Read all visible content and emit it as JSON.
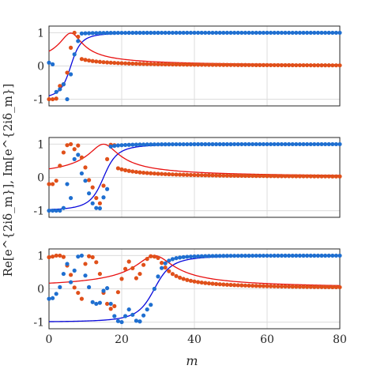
{
  "chart_data": {
    "type": "scatter",
    "xlabel": "m",
    "ylabel": "Re[e^{2iδ_m}], Im[e^{2iδ_m}]",
    "xlim": [
      0,
      80
    ],
    "ylim": [
      -1.2,
      1.2
    ],
    "x_ticks": [
      "0",
      "20",
      "40",
      "60",
      "80"
    ],
    "y_ticks": [
      "-1",
      "0",
      "1"
    ],
    "grid": true,
    "colors": {
      "blue_dots": "#1f6fd0",
      "red_dots": "#e0501a",
      "blue_line": "#0a0adc",
      "red_line": "#e81010"
    },
    "panels": [
      {
        "line_transition": 6,
        "line_scale": 3,
        "dot_transition": 6,
        "dot_scale": 1.5,
        "blue_dots": [
          [
            0,
            0.1
          ],
          [
            1,
            0.05
          ],
          [
            2,
            -0.78
          ],
          [
            3,
            -0.7
          ],
          [
            4,
            -0.55
          ],
          [
            5,
            -1.0
          ],
          [
            6,
            -0.25
          ],
          [
            7,
            0.35
          ],
          [
            8,
            0.75
          ]
        ],
        "red_dots": [
          [
            0,
            -1.0
          ],
          [
            1,
            -1.0
          ],
          [
            2,
            -0.98
          ],
          [
            3,
            -0.6
          ],
          [
            4,
            -0.55
          ],
          [
            5,
            -0.2
          ],
          [
            6,
            0.55
          ],
          [
            7,
            1.0
          ],
          [
            8,
            0.88
          ]
        ]
      },
      {
        "line_transition": 15,
        "line_scale": 4,
        "dot_transition": 15,
        "dot_scale": 2,
        "blue_dots": [
          [
            0,
            -1.0
          ],
          [
            1,
            -1.0
          ],
          [
            2,
            -1.0
          ],
          [
            3,
            -1.0
          ],
          [
            4,
            -0.92
          ],
          [
            5,
            -0.2
          ],
          [
            6,
            -0.62
          ],
          [
            7,
            0.55
          ],
          [
            8,
            0.68
          ],
          [
            9,
            0.12
          ],
          [
            10,
            -0.1
          ],
          [
            11,
            -0.48
          ],
          [
            12,
            -0.78
          ],
          [
            13,
            -0.92
          ],
          [
            14,
            -0.93
          ],
          [
            15,
            -0.6
          ],
          [
            16,
            -0.35
          ]
        ],
        "red_dots": [
          [
            0,
            -0.2
          ],
          [
            1,
            -0.2
          ],
          [
            2,
            -0.1
          ],
          [
            3,
            0.35
          ],
          [
            4,
            0.75
          ],
          [
            5,
            0.97
          ],
          [
            6,
            1.0
          ],
          [
            7,
            0.85
          ],
          [
            8,
            0.96
          ],
          [
            9,
            0.6
          ],
          [
            10,
            0.3
          ],
          [
            11,
            -0.08
          ],
          [
            12,
            -0.3
          ],
          [
            13,
            -0.62
          ],
          [
            14,
            -0.78
          ],
          [
            15,
            -0.25
          ],
          [
            16,
            0.55
          ],
          [
            17,
            0.98
          ],
          [
            18,
            0.97
          ]
        ]
      },
      {
        "line_transition": 29,
        "line_scale": 5,
        "dot_transition": 29,
        "dot_scale": 2.5,
        "blue_dots": [
          [
            0,
            -0.3
          ],
          [
            1,
            -0.28
          ],
          [
            2,
            -0.15
          ],
          [
            3,
            0.05
          ],
          [
            4,
            0.45
          ],
          [
            5,
            0.75
          ],
          [
            6,
            0.2
          ],
          [
            7,
            0.55
          ],
          [
            8,
            0.97
          ],
          [
            9,
            1.0
          ],
          [
            10,
            0.4
          ],
          [
            11,
            0.05
          ],
          [
            12,
            -0.4
          ],
          [
            13,
            -0.45
          ],
          [
            14,
            -0.42
          ],
          [
            15,
            -0.06
          ],
          [
            16,
            0.02
          ],
          [
            17,
            -0.45
          ],
          [
            18,
            -0.82
          ],
          [
            19,
            -0.97
          ],
          [
            20,
            -1.0
          ],
          [
            21,
            -0.82
          ],
          [
            22,
            -0.62
          ],
          [
            23,
            -0.78
          ],
          [
            24,
            -0.96
          ],
          [
            25,
            -0.98
          ],
          [
            26,
            -0.8
          ],
          [
            27,
            -0.62
          ],
          [
            28,
            -0.48
          ]
        ],
        "red_dots": [
          [
            0,
            0.95
          ],
          [
            1,
            0.97
          ],
          [
            2,
            1.0
          ],
          [
            3,
            1.0
          ],
          [
            4,
            0.96
          ],
          [
            5,
            0.7
          ],
          [
            6,
            0.42
          ],
          [
            7,
            0.04
          ],
          [
            8,
            -0.12
          ],
          [
            9,
            -0.3
          ],
          [
            10,
            0.75
          ],
          [
            11,
            0.98
          ],
          [
            12,
            0.95
          ],
          [
            13,
            0.8
          ],
          [
            14,
            0.45
          ],
          [
            15,
            -0.12
          ],
          [
            16,
            -0.45
          ],
          [
            17,
            -0.6
          ],
          [
            18,
            -0.52
          ],
          [
            19,
            -0.1
          ],
          [
            20,
            0.3
          ],
          [
            21,
            0.6
          ],
          [
            22,
            0.82
          ],
          [
            23,
            0.62
          ],
          [
            24,
            0.32
          ],
          [
            25,
            0.45
          ],
          [
            26,
            0.72
          ],
          [
            27,
            0.9
          ],
          [
            28,
            0.98
          ],
          [
            29,
            0.97
          ]
        ]
      }
    ]
  }
}
